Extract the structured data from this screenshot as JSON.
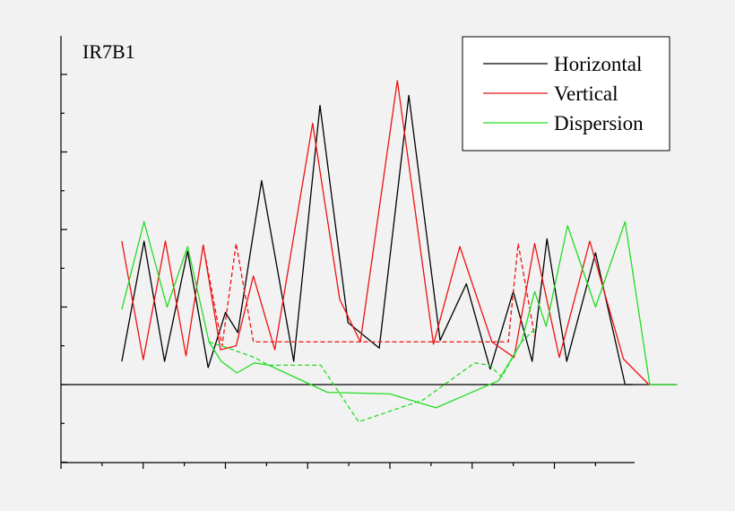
{
  "chart_data": {
    "type": "line",
    "title": "IR7B1",
    "xlabel": "",
    "ylabel": "",
    "grid": false,
    "legend_position": "top-right",
    "x_ticks": {
      "major": [
        0,
        1,
        2,
        3,
        4,
        5,
        6,
        7
      ],
      "minor": [
        0.5,
        1.5,
        2.5,
        3.5,
        4.5,
        5.5,
        6.5,
        7.5
      ]
    },
    "y_ticks": {
      "major": [
        -1,
        0,
        1,
        2,
        3,
        4
      ],
      "minor": [
        -0.5,
        0.5,
        1.5,
        2.5,
        3.5,
        4.5
      ]
    },
    "xlim": [
      0,
      7.1
    ],
    "ylim": [
      -1.0,
      4.4
    ],
    "zero_line": 0,
    "legend": [
      {
        "label": "Horizontal",
        "color": "#000000"
      },
      {
        "label": "Vertical",
        "color": "#ee1111"
      },
      {
        "label": "Dispersion",
        "color": "#22dd22"
      }
    ],
    "series": [
      {
        "name": "Horizontal",
        "color": "#000000",
        "style": "solid",
        "x": [
          0.74,
          1.01,
          1.26,
          1.54,
          1.79,
          2.0,
          2.15,
          2.44,
          2.83,
          3.15,
          3.49,
          3.87,
          4.23,
          4.61,
          4.93,
          5.22,
          5.5,
          5.73,
          5.91,
          6.15,
          6.5,
          6.86,
          7.14,
          7.48
        ],
        "y": [
          0.3,
          1.85,
          0.3,
          1.72,
          0.22,
          0.93,
          0.67,
          2.63,
          0.3,
          3.6,
          0.8,
          0.47,
          3.73,
          0.57,
          1.3,
          0.2,
          1.2,
          0.3,
          1.88,
          0.3,
          1.7,
          0.0,
          0.0,
          0.0
        ]
      },
      {
        "name": "Vertical",
        "color": "#ee1111",
        "style": "solid",
        "x": [
          0.74,
          1.0,
          1.27,
          1.52,
          1.73,
          1.94,
          2.13,
          2.34,
          2.6,
          3.06,
          3.39,
          3.64,
          4.09,
          4.53,
          4.85,
          5.24,
          5.51,
          5.76,
          6.06,
          6.43,
          6.84,
          7.15
        ],
        "y": [
          1.85,
          0.32,
          1.85,
          0.37,
          1.8,
          0.45,
          0.5,
          1.4,
          0.45,
          3.37,
          1.1,
          0.55,
          3.92,
          0.52,
          1.78,
          0.55,
          0.35,
          1.82,
          0.35,
          1.85,
          0.33,
          0.0
        ]
      },
      {
        "name": "Vertical",
        "color": "#ee1111",
        "style": "dashed",
        "x": [
          1.73,
          1.96,
          2.13,
          2.34,
          5.24,
          5.44,
          5.56,
          5.76
        ],
        "y": [
          1.8,
          0.5,
          1.82,
          0.55,
          0.55,
          0.55,
          1.82,
          0.62
        ]
      },
      {
        "name": "Dispersion",
        "color": "#22dd22",
        "style": "solid",
        "x": [
          0.74,
          1.01,
          1.29,
          1.54,
          1.8,
          1.95,
          2.14,
          2.35,
          2.53,
          3.24,
          4.0,
          4.56,
          5.32,
          5.6,
          5.76,
          5.9,
          6.16,
          6.5,
          6.86,
          7.16,
          7.5
        ],
        "y": [
          0.97,
          2.1,
          1.0,
          1.78,
          0.55,
          0.3,
          0.15,
          0.28,
          0.25,
          -0.1,
          -0.12,
          -0.3,
          0.05,
          0.55,
          1.2,
          0.75,
          2.05,
          1.0,
          2.1,
          0.0,
          0.0
        ]
      },
      {
        "name": "Dispersion",
        "color": "#22dd22",
        "style": "dashed",
        "x": [
          1.8,
          2.09,
          2.35,
          2.53,
          3.16,
          3.62,
          4.4,
          5.03,
          5.21,
          5.36,
          5.6,
          5.8
        ],
        "y": [
          0.55,
          0.45,
          0.35,
          0.25,
          0.25,
          -0.48,
          -0.2,
          0.28,
          0.25,
          0.1,
          0.55,
          0.75
        ]
      }
    ]
  }
}
